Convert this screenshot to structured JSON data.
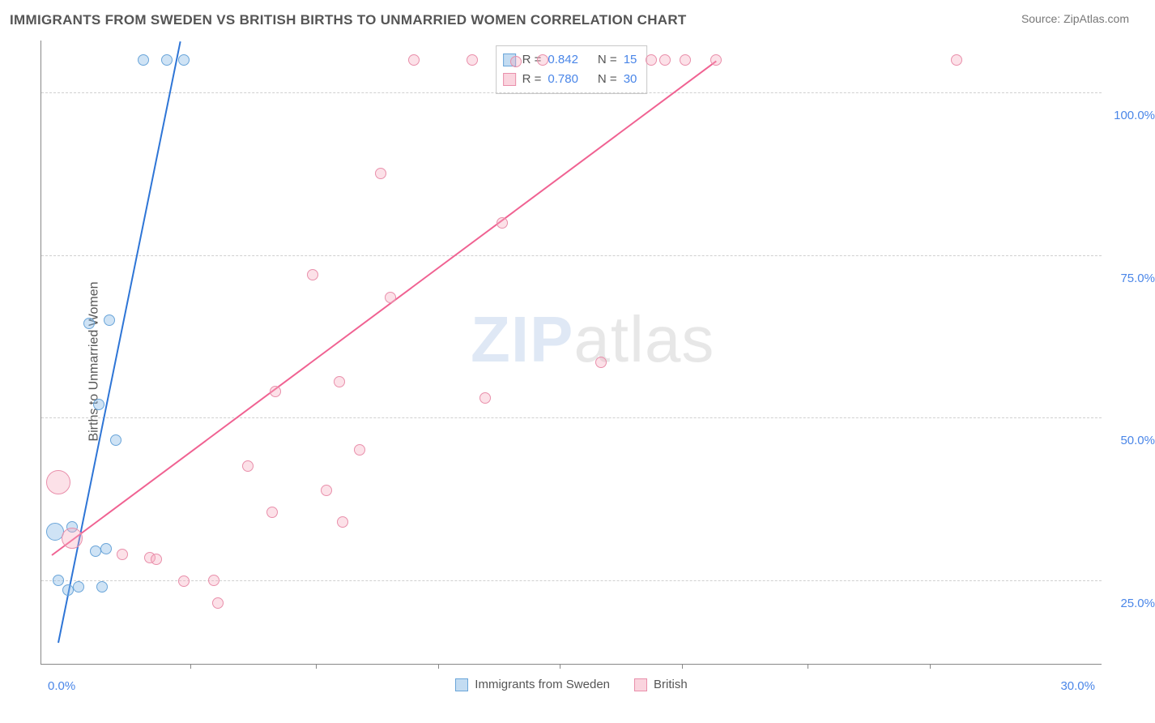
{
  "title": "IMMIGRANTS FROM SWEDEN VS BRITISH BIRTHS TO UNMARRIED WOMEN CORRELATION CHART",
  "source": "Source: ZipAtlas.com",
  "watermark_zip": "ZIP",
  "watermark_atlas": "atlas",
  "y_axis": {
    "label": "Births to Unmarried Women",
    "ticks": [
      {
        "value": 25.0,
        "label": "25.0%"
      },
      {
        "value": 50.0,
        "label": "50.0%"
      },
      {
        "value": 75.0,
        "label": "75.0%"
      },
      {
        "value": 100.0,
        "label": "100.0%"
      }
    ],
    "domain": [
      12,
      108
    ]
  },
  "x_axis": {
    "ticks": [
      {
        "value": 0.0,
        "label": "0.0%"
      },
      {
        "value": 30.0,
        "label": "30.0%"
      }
    ],
    "minor_ticks": [
      3.6,
      7.3,
      10.9,
      14.5,
      18.1,
      21.8,
      25.4
    ],
    "domain": [
      -0.8,
      30.5
    ]
  },
  "series": [
    {
      "name": "Immigrants from Sweden",
      "color_fill": "rgba(135,185,230,0.4)",
      "color_stroke": "#6aa5d9",
      "trend_color": "#2e75d6",
      "r_label": "R =",
      "r_value": "0.842",
      "n_label": "N =",
      "n_value": "15",
      "trend": {
        "x1": -0.3,
        "y1": 15.5,
        "x2": 3.3,
        "y2": 108
      },
      "points": [
        {
          "x": 0.0,
          "y": 23.5,
          "size": 14
        },
        {
          "x": 0.3,
          "y": 24.0,
          "size": 14
        },
        {
          "x": -0.3,
          "y": 25.0,
          "size": 14
        },
        {
          "x": 1.0,
          "y": 24.0,
          "size": 14
        },
        {
          "x": -0.4,
          "y": 32.5,
          "size": 22
        },
        {
          "x": 0.1,
          "y": 33.2,
          "size": 14
        },
        {
          "x": 0.8,
          "y": 29.5,
          "size": 14
        },
        {
          "x": 1.1,
          "y": 29.8,
          "size": 14
        },
        {
          "x": 1.4,
          "y": 46.5,
          "size": 14
        },
        {
          "x": 0.9,
          "y": 52.0,
          "size": 14
        },
        {
          "x": 0.6,
          "y": 64.5,
          "size": 14
        },
        {
          "x": 1.2,
          "y": 65.0,
          "size": 14
        },
        {
          "x": 2.2,
          "y": 105.0,
          "size": 14
        },
        {
          "x": 2.9,
          "y": 105.0,
          "size": 14
        },
        {
          "x": 3.4,
          "y": 105.0,
          "size": 14
        }
      ]
    },
    {
      "name": "British",
      "color_fill": "rgba(245,170,190,0.35)",
      "color_stroke": "#e98fab",
      "trend_color": "#f06292",
      "r_label": "R =",
      "r_value": "0.780",
      "n_label": "N =",
      "n_value": "30",
      "trend": {
        "x1": -0.5,
        "y1": 29.0,
        "x2": 19.1,
        "y2": 105.0
      },
      "points": [
        {
          "x": -0.3,
          "y": 40.0,
          "size": 30
        },
        {
          "x": 0.1,
          "y": 31.5,
          "size": 26
        },
        {
          "x": 1.6,
          "y": 29.0,
          "size": 14
        },
        {
          "x": 2.4,
          "y": 28.5,
          "size": 14
        },
        {
          "x": 2.6,
          "y": 28.2,
          "size": 14
        },
        {
          "x": 3.4,
          "y": 24.8,
          "size": 14
        },
        {
          "x": 4.3,
          "y": 25.0,
          "size": 14
        },
        {
          "x": 4.4,
          "y": 21.5,
          "size": 14
        },
        {
          "x": 5.3,
          "y": 42.5,
          "size": 14
        },
        {
          "x": 6.0,
          "y": 35.5,
          "size": 14
        },
        {
          "x": 6.1,
          "y": 54.0,
          "size": 14
        },
        {
          "x": 7.2,
          "y": 72.0,
          "size": 14
        },
        {
          "x": 7.6,
          "y": 38.8,
          "size": 14
        },
        {
          "x": 8.0,
          "y": 55.5,
          "size": 14
        },
        {
          "x": 8.1,
          "y": 34.0,
          "size": 14
        },
        {
          "x": 8.6,
          "y": 45.0,
          "size": 14
        },
        {
          "x": 9.2,
          "y": 87.5,
          "size": 14
        },
        {
          "x": 9.5,
          "y": 68.5,
          "size": 14
        },
        {
          "x": 10.2,
          "y": 105.0,
          "size": 14
        },
        {
          "x": 11.9,
          "y": 105.0,
          "size": 14
        },
        {
          "x": 12.3,
          "y": 53.0,
          "size": 14
        },
        {
          "x": 12.8,
          "y": 80.0,
          "size": 14
        },
        {
          "x": 13.2,
          "y": 104.8,
          "size": 14
        },
        {
          "x": 14.0,
          "y": 105.0,
          "size": 14
        },
        {
          "x": 15.7,
          "y": 58.5,
          "size": 14
        },
        {
          "x": 17.2,
          "y": 105.0,
          "size": 14
        },
        {
          "x": 17.6,
          "y": 105.0,
          "size": 14
        },
        {
          "x": 18.2,
          "y": 105.0,
          "size": 14
        },
        {
          "x": 19.1,
          "y": 105.0,
          "size": 14
        },
        {
          "x": 26.2,
          "y": 105.0,
          "size": 14
        }
      ]
    }
  ]
}
